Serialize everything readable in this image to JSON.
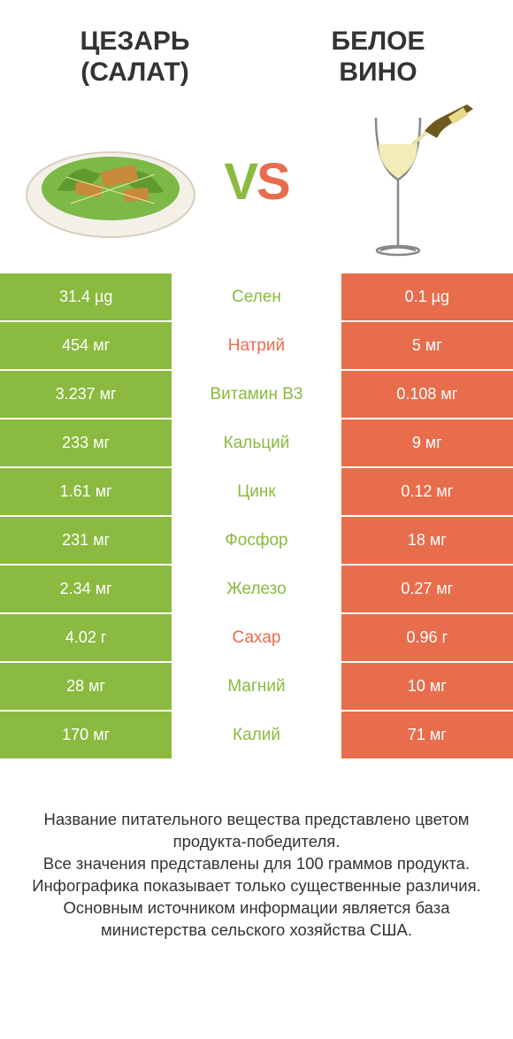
{
  "colors": {
    "left_bar": "#8aba3f",
    "right_bar": "#e86d4c",
    "text_dark": "#333333",
    "vs_left": "#8aba3f",
    "vs_right": "#e86d4c"
  },
  "fontsize": {
    "title": 30,
    "cell_value": 18,
    "nutrient": 19,
    "footer": 18.5,
    "vs": 58
  },
  "header": {
    "left_title_line1": "ЦЕЗАРЬ",
    "left_title_line2": "(САЛАТ)",
    "right_title_line1": "БЕЛОЕ",
    "right_title_line2": "ВИНО",
    "vs_v": "V",
    "vs_s": "S"
  },
  "rows": [
    {
      "left": "31.4 µg",
      "label": "Селен",
      "right": "0.1 µg",
      "label_color": "#8aba3f"
    },
    {
      "left": "454 мг",
      "label": "Натрий",
      "right": "5 мг",
      "label_color": "#e86d4c"
    },
    {
      "left": "3.237 мг",
      "label": "Витамин B3",
      "right": "0.108 мг",
      "label_color": "#8aba3f"
    },
    {
      "left": "233 мг",
      "label": "Кальций",
      "right": "9 мг",
      "label_color": "#8aba3f"
    },
    {
      "left": "1.61 мг",
      "label": "Цинк",
      "right": "0.12 мг",
      "label_color": "#8aba3f"
    },
    {
      "left": "231 мг",
      "label": "Фосфор",
      "right": "18 мг",
      "label_color": "#8aba3f"
    },
    {
      "left": "2.34 мг",
      "label": "Железо",
      "right": "0.27 мг",
      "label_color": "#8aba3f"
    },
    {
      "left": "4.02 г",
      "label": "Сахар",
      "right": "0.96 г",
      "label_color": "#e86d4c"
    },
    {
      "left": "28 мг",
      "label": "Магний",
      "right": "10 мг",
      "label_color": "#8aba3f"
    },
    {
      "left": "170 мг",
      "label": "Калий",
      "right": "71 мг",
      "label_color": "#8aba3f"
    }
  ],
  "footer": {
    "line1": "Название питательного вещества представлено цветом продукта-победителя.",
    "line2": "Все значения представлены для 100 граммов продукта.",
    "line3": "Инфографика показывает только существенные различия.",
    "line4": "Основным источником информации является база министерства сельского хозяйства США."
  }
}
